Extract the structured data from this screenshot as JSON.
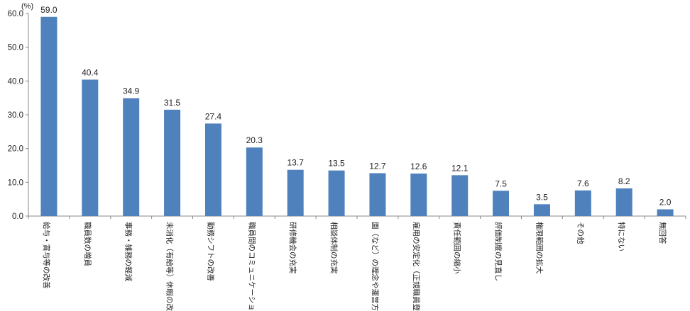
{
  "chart_data": {
    "type": "bar",
    "unit": "(%)",
    "categories": [
      "給与・賞与等の改善",
      "職員数の増員",
      "事務・雑務の軽減",
      "未消化（有給等）休暇の改善",
      "勤務シフトの改善",
      "職員間のコミュニケーション",
      "研修機会の充実",
      "相談体制の充実",
      "園（など）の理念や運営方針",
      "雇用の安定化（正規職員登用",
      "責任範囲の縮小",
      "評価制度の見直し",
      "権限範囲の拡大",
      "その他",
      "特にない",
      "無回答"
    ],
    "values": [
      59.0,
      40.4,
      34.9,
      31.5,
      27.4,
      20.3,
      13.7,
      13.5,
      12.7,
      12.6,
      12.1,
      7.5,
      3.5,
      7.6,
      8.2,
      2.0
    ],
    "value_labels": [
      "59.0",
      "40.4",
      "34.9",
      "31.5",
      "27.4",
      "20.3",
      "13.7",
      "13.5",
      "12.7",
      "12.6",
      "12.1",
      "7.5",
      "3.5",
      "7.6",
      "8.2",
      "2.0"
    ],
    "ylim": [
      0,
      60
    ],
    "yticks": [
      "0.0",
      "10.0",
      "20.0",
      "30.0",
      "40.0",
      "50.0",
      "60.0"
    ],
    "grid": false,
    "bar_color": "#4f81bd"
  }
}
